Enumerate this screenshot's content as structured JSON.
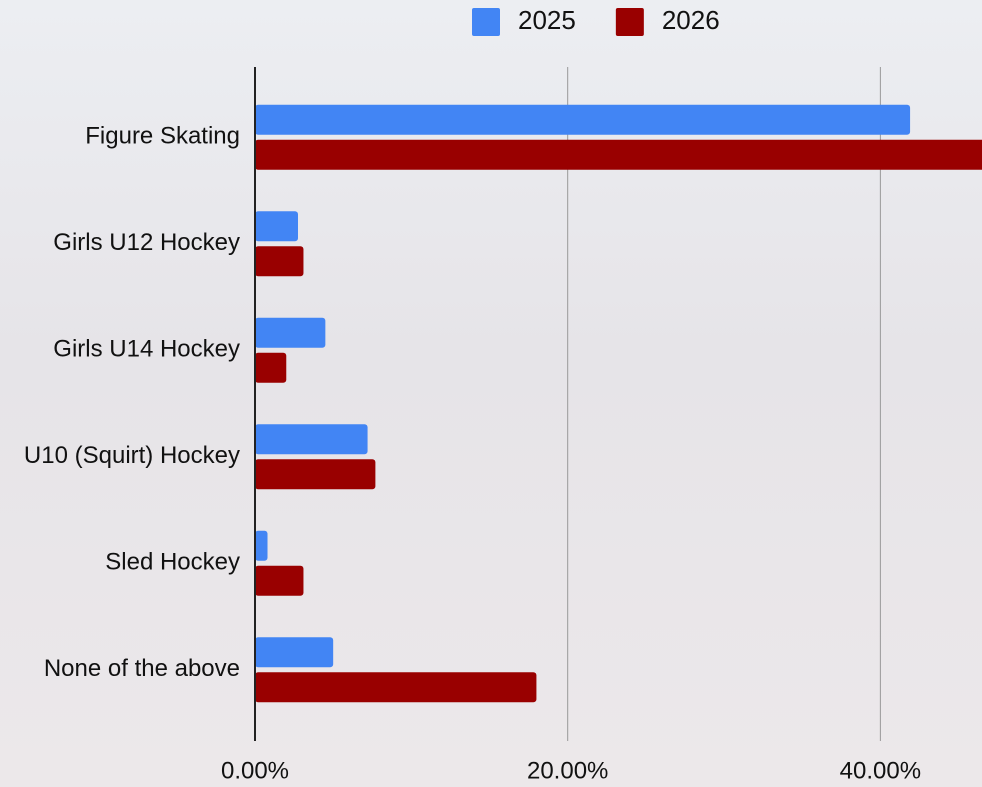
{
  "chart_data": {
    "type": "hbar",
    "categories": [
      "Figure Skating",
      "Girls U12 Hockey",
      "Girls U14 Hockey",
      "U10 (Squirt) Hockey",
      "Sled Hockey",
      "None of the above"
    ],
    "series": [
      {
        "name": "2025",
        "color": "#4285f4",
        "values": [
          41.9,
          2.75,
          4.5,
          7.2,
          0.8,
          5.0
        ]
      },
      {
        "name": "2026",
        "color": "#990000",
        "values": [
          47,
          3.1,
          2.0,
          7.7,
          3.1,
          18.0
        ]
      }
    ],
    "xlim": [
      0,
      46.5
    ],
    "xticks": [
      {
        "value": 0,
        "label": "0.00%"
      },
      {
        "value": 20,
        "label": "20.00%"
      },
      {
        "value": 40,
        "label": "40.00%"
      }
    ],
    "grid": true,
    "legend": "top"
  }
}
